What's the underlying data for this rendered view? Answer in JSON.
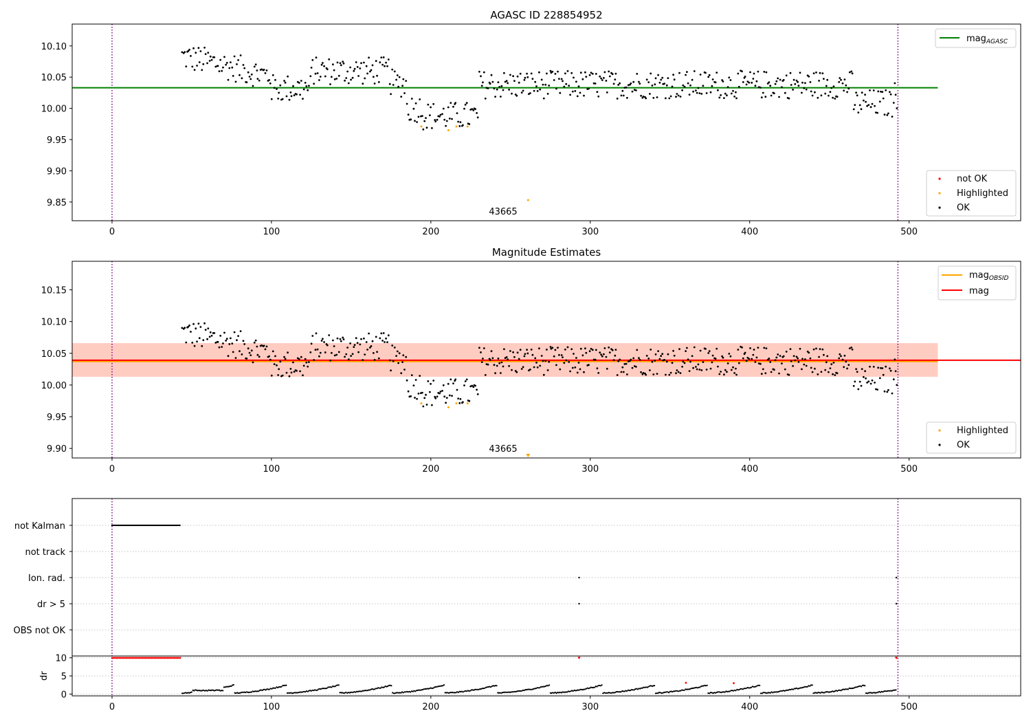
{
  "chart_data": [
    {
      "type": "scatter",
      "title": "AGASC ID 228854952",
      "xlim": [
        -25,
        570
      ],
      "ylim": [
        9.82,
        10.135
      ],
      "x_ticks": [
        0,
        100,
        200,
        300,
        400,
        500
      ],
      "y_ticks": [
        9.85,
        9.9,
        9.95,
        10.0,
        10.05,
        10.1
      ],
      "vlines": [
        0,
        493
      ],
      "reference_lines": [
        {
          "name": "mag_AGASC",
          "y": 10.033,
          "x_range": [
            -25,
            518
          ],
          "color": "#008000"
        }
      ],
      "annotations": [
        {
          "text": "43665",
          "x": 245,
          "y": 9.84
        }
      ],
      "series_samples": {
        "OK": {
          "color": "#000000",
          "note": "per-observation magnitudes"
        },
        "Highlighted": {
          "color": "#ffa500",
          "x": [
            194,
            211,
            216,
            223,
            261
          ],
          "y": [
            9.971,
            9.965,
            9.971,
            9.971,
            9.853
          ]
        },
        "not OK": {
          "color": "#ff0000"
        }
      },
      "legend_upper": [
        {
          "label": "mag",
          "sub": "AGASC",
          "color": "#008000"
        }
      ],
      "legend_lower": [
        {
          "label": "not OK",
          "color": "#ff0000"
        },
        {
          "label": "Highlighted",
          "color": "#ffa500"
        },
        {
          "label": "OK",
          "color": "#000000"
        }
      ]
    },
    {
      "type": "scatter",
      "title": "Magnitude Estimates",
      "xlim": [
        -25,
        570
      ],
      "ylim": [
        9.885,
        10.195
      ],
      "x_ticks": [
        0,
        100,
        200,
        300,
        400,
        500
      ],
      "y_ticks": [
        9.9,
        9.95,
        10.0,
        10.05,
        10.1,
        10.15
      ],
      "vlines": [
        0,
        493
      ],
      "reference_lines": [
        {
          "name": "mag_OBSID",
          "y": 10.037,
          "x_range": [
            -25,
            518
          ],
          "color": "#ffa500"
        },
        {
          "name": "mag",
          "y": 10.039,
          "x_range": [
            -25,
            570
          ],
          "color": "#ff0000"
        }
      ],
      "bands": [
        {
          "y_range": [
            10.013,
            10.066
          ],
          "x_range": [
            -25,
            518
          ],
          "color": "#ffc0cb"
        },
        {
          "y_range": [
            10.013,
            10.066
          ],
          "x_range": [
            -25,
            518
          ],
          "color": "#ffa07a"
        }
      ],
      "annotations": [
        {
          "text": "43665",
          "x": 245,
          "y": 9.903
        }
      ],
      "legend_upper": [
        {
          "label": "mag",
          "sub": "OBSID",
          "color": "#ffa500"
        },
        {
          "label": "mag",
          "sub": "",
          "color": "#ff0000"
        }
      ],
      "legend_lower": [
        {
          "label": "Highlighted",
          "color": "#ffa500"
        },
        {
          "label": "OK",
          "color": "#000000"
        }
      ]
    },
    {
      "type": "scatter",
      "title": "",
      "xlim": [
        -25,
        570
      ],
      "flag_rows": [
        "not Kalman",
        "not track",
        "Ion. rad.",
        "dr > 5",
        "OBS not OK"
      ],
      "flags": {
        "not Kalman": {
          "x_range": [
            0,
            43
          ]
        },
        "Ion. rad.": {
          "x": [
            293,
            492
          ]
        },
        "dr > 5": {
          "x": [
            293,
            492
          ]
        }
      }
    },
    {
      "type": "scatter",
      "title": "",
      "xlim": [
        -25,
        570
      ],
      "ylim": [
        -0.5,
        10.5
      ],
      "x_ticks": [
        0,
        100,
        200,
        300,
        400,
        500
      ],
      "y_ticks": [
        0,
        5,
        10
      ],
      "ylabel": "dr",
      "saturated_points": {
        "y": 9.9,
        "x_range": [
          0,
          43
        ],
        "extra_x": [
          293,
          492
        ],
        "color": "#ff0000"
      },
      "red_points": [
        {
          "x": 360,
          "y": 3.1
        },
        {
          "x": 390,
          "y": 3.0
        }
      ]
    }
  ]
}
